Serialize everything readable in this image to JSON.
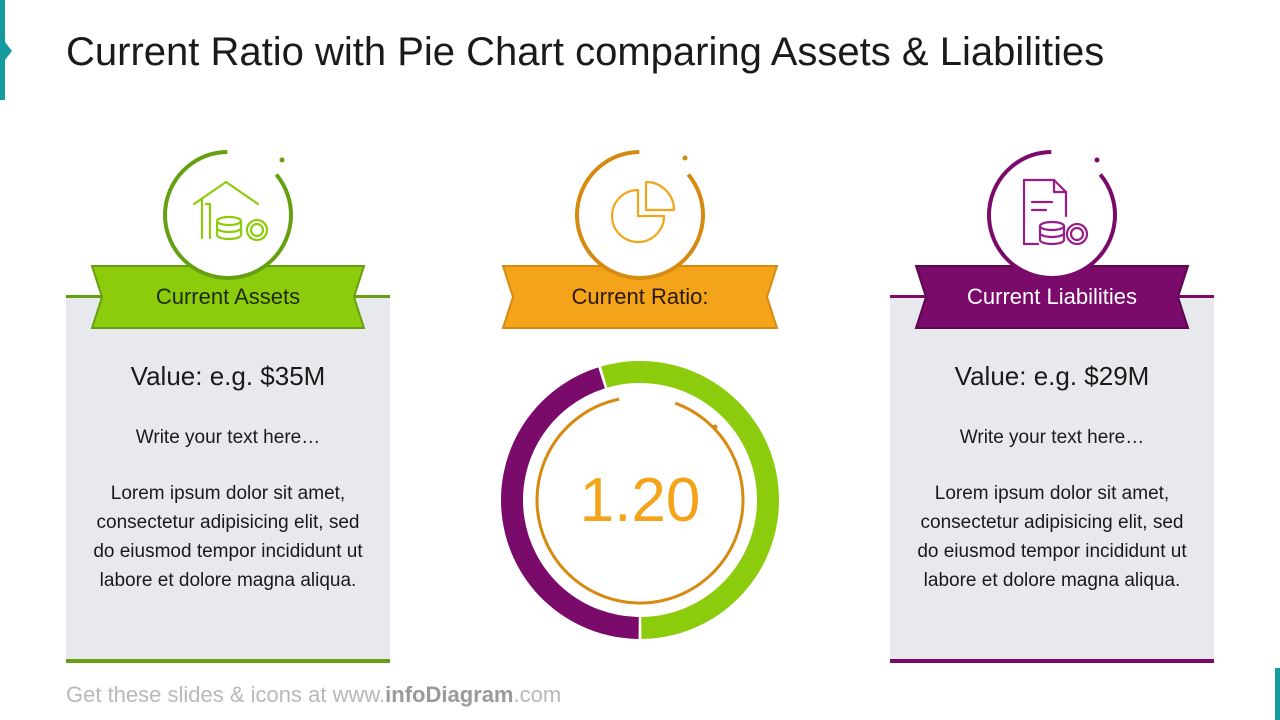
{
  "title": "Current Ratio with Pie Chart comparing Assets & Liabilities",
  "colors": {
    "assets": "#8ccc0c",
    "assets_dark": "#66a012",
    "ratio": "#f4a41b",
    "ratio_dark": "#d68a10",
    "liabilities": "#7a0b6b",
    "accent": "#159aa0"
  },
  "assets": {
    "icon": "house-coins-icon",
    "label": "Current Assets",
    "value": "Value: e.g. $35M",
    "subtext": "Write your text here…",
    "description": "Lorem ipsum dolor sit amet, consectetur adipisicing elit, sed do eiusmod tempor incididunt ut labore et dolore magna aliqua."
  },
  "ratio": {
    "icon": "pie-chart-icon",
    "label": "Current Ratio:",
    "value": "1.20"
  },
  "liabilities": {
    "icon": "document-coins-icon",
    "label": "Current Liabilities",
    "value": "Value: e.g. $29M",
    "subtext": "Write your text here…",
    "description": "Lorem ipsum dolor sit amet, consectetur adipisicing elit, sed do eiusmod tempor incididunt ut labore et dolore magna aliqua."
  },
  "chart_data": {
    "type": "pie",
    "categories": [
      "Current Assets",
      "Current Liabilities"
    ],
    "values": [
      35,
      29
    ],
    "center_label": "1.20"
  },
  "footer": {
    "prefix": "Get these slides & icons at www.",
    "brand": "infoDiagram",
    "suffix": ".com"
  }
}
